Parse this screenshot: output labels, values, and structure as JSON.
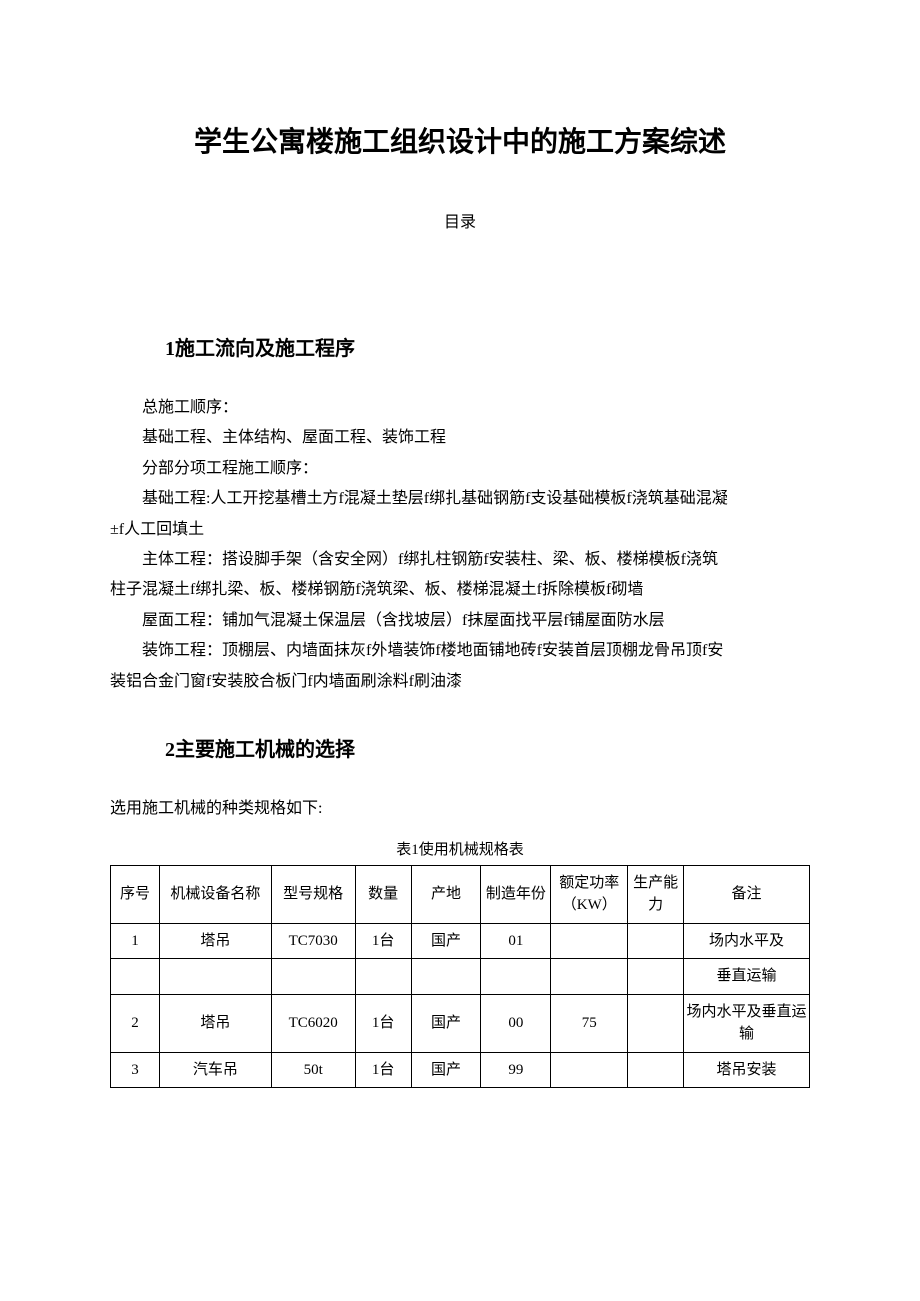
{
  "document": {
    "title": "学生公寓楼施工组织设计中的施工方案综述",
    "toc_label": "目录"
  },
  "section1": {
    "heading": "1施工流向及施工程序",
    "lines": {
      "l1": "总施工顺序：",
      "l2": "基础工程、主体结构、屋面工程、装饰工程",
      "l3": "分部分项工程施工顺序：",
      "l4": "基础工程:人工开挖基槽土方f混凝土垫层f绑扎基础钢筋f支设基础模板f浇筑基础混凝",
      "l5": "±f人工回填土",
      "l6": "主体工程：搭设脚手架（含安全网）f绑扎柱钢筋f安装柱、梁、板、楼梯模板f浇筑",
      "l7": "柱子混凝土f绑扎梁、板、楼梯钢筋f浇筑梁、板、楼梯混凝土f拆除模板f砌墙",
      "l8": "屋面工程：铺加气混凝土保温层（含找坡层）f抹屋面找平层f铺屋面防水层",
      "l9": "装饰工程：顶棚层、内墙面抹灰f外墙装饰f楼地面铺地砖f安装首层顶棚龙骨吊顶f安",
      "l10": "装铝合金门窗f安装胶合板门f内墙面刷涂料f刷油漆"
    }
  },
  "section2": {
    "heading": "2主要施工机械的选择",
    "intro": "选用施工机械的种类规格如下:",
    "table_caption": "表1使用机械规格表"
  },
  "table": {
    "headers": {
      "seq": "序号",
      "name": "机械设备名称",
      "model": "型号规格",
      "qty": "数量",
      "origin": "产地",
      "year": "制造年份",
      "power": "额定功率（KW）",
      "capacity": "生产能力",
      "remark": "备注"
    },
    "rows": [
      {
        "seq": "1",
        "name": "塔吊",
        "model": "TC7030",
        "qty": "1台",
        "origin": "国产",
        "year": "01",
        "power": "",
        "capacity": "",
        "remark": "场内水平及"
      },
      {
        "seq": "",
        "name": "",
        "model": "",
        "qty": "",
        "origin": "",
        "year": "",
        "power": "",
        "capacity": "",
        "remark": "垂直运输"
      },
      {
        "seq": "2",
        "name": "塔吊",
        "model": "TC6020",
        "qty": "1台",
        "origin": "国产",
        "year": "00",
        "power": "75",
        "capacity": "",
        "remark": "场内水平及垂直运输"
      },
      {
        "seq": "3",
        "name": "汽车吊",
        "model": "50t",
        "qty": "1台",
        "origin": "国产",
        "year": "99",
        "power": "",
        "capacity": "",
        "remark": "塔吊安装"
      }
    ]
  },
  "style": {
    "background_color": "#ffffff",
    "text_color": "#000000",
    "border_color": "#000000",
    "title_fontsize": 28,
    "heading_fontsize": 20,
    "body_fontsize": 16,
    "table_fontsize": 15
  }
}
